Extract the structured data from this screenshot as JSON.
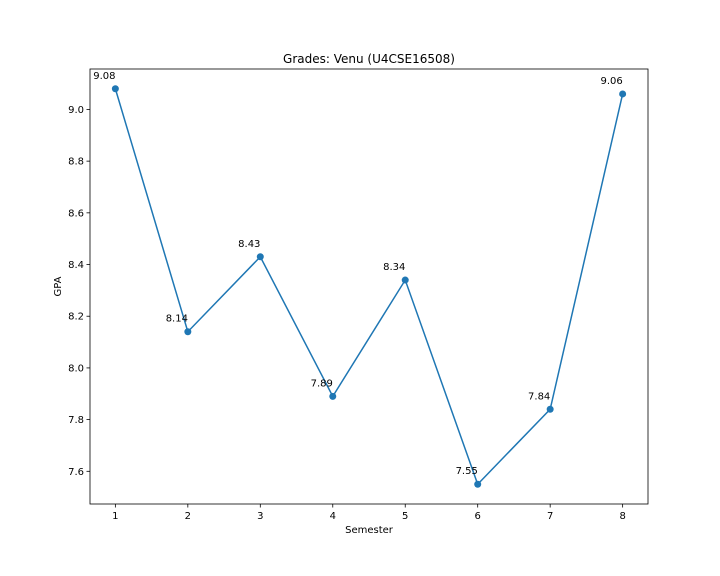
{
  "chart_data": {
    "type": "line",
    "title": "Grades: Venu (U4CSE16508)",
    "xlabel": "Semester",
    "ylabel": "GPA",
    "x": [
      1,
      2,
      3,
      4,
      5,
      6,
      7,
      8
    ],
    "series": [
      {
        "values": [
          9.08,
          8.14,
          8.43,
          7.89,
          8.34,
          7.55,
          7.84,
          9.06
        ]
      }
    ],
    "data_labels": [
      "9.08",
      "8.14",
      "8.43",
      "7.89",
      "8.34",
      "7.55",
      "7.84",
      "9.06"
    ],
    "xlim": [
      0.65,
      8.35
    ],
    "ylim": [
      7.4735,
      9.1565
    ],
    "x_ticks": [
      1,
      2,
      3,
      4,
      5,
      6,
      7,
      8
    ],
    "y_ticks": [
      7.6,
      7.8,
      8.0,
      8.2,
      8.4,
      8.6,
      8.8,
      9.0
    ],
    "y_tick_labels": [
      "7.6",
      "7.8",
      "8.0",
      "8.2",
      "8.4",
      "8.6",
      "8.8",
      "9.0"
    ],
    "grid": false,
    "line_color": "#1f77b4",
    "marker": "circle"
  }
}
